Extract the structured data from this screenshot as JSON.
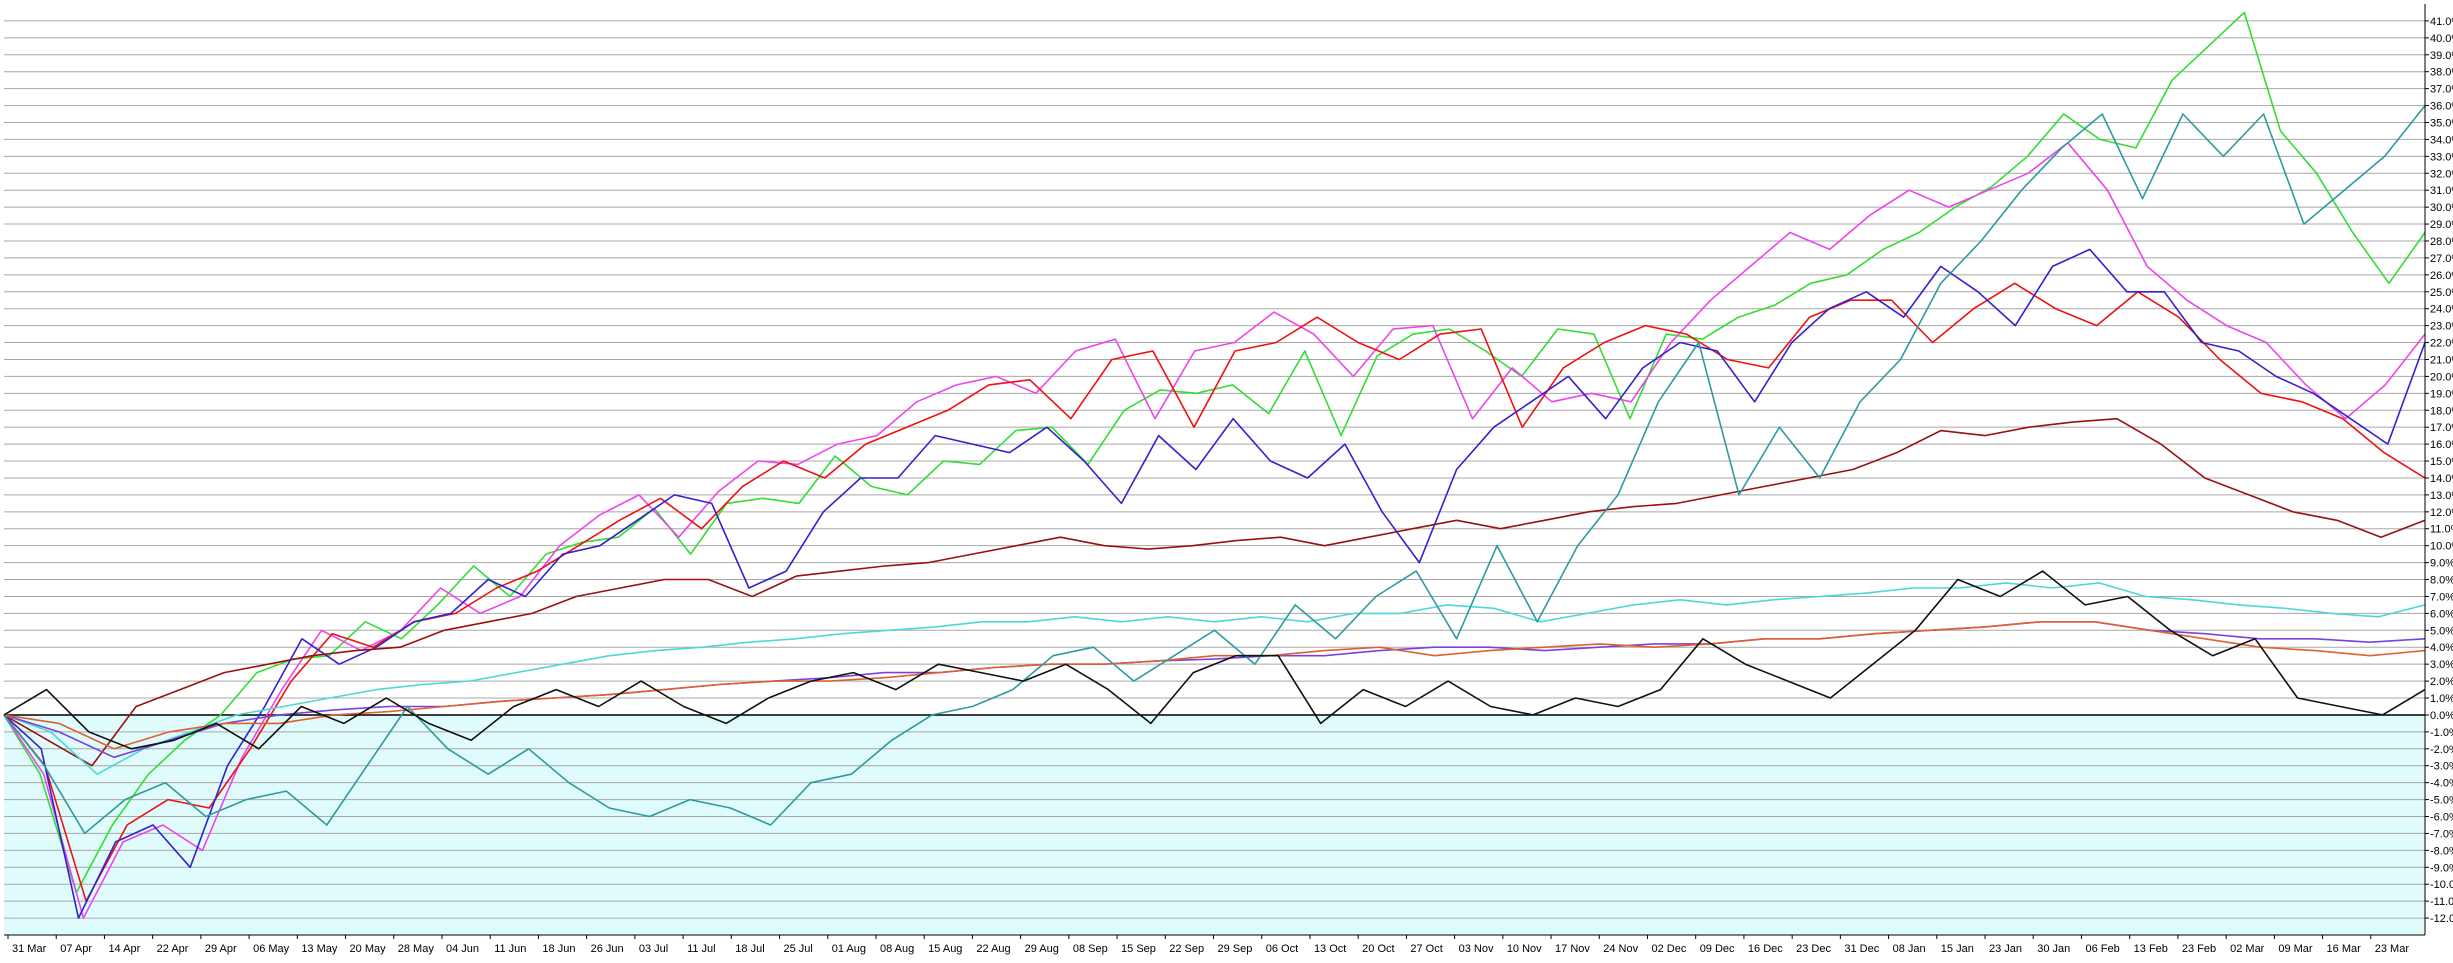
{
  "chart_data": {
    "type": "line",
    "title": "",
    "xlabel": "",
    "ylabel": "",
    "ylim": [
      -13,
      42
    ],
    "y_tick_values": [
      41,
      40,
      39,
      38,
      37,
      36,
      35,
      34,
      33,
      32,
      31,
      30,
      29,
      28,
      27,
      26,
      25,
      24,
      23,
      22,
      21,
      20,
      19,
      18,
      17,
      16,
      15,
      14,
      13,
      12,
      11,
      10,
      9,
      8,
      7,
      6,
      5,
      4,
      3,
      2,
      1,
      0,
      -1,
      -2,
      -3,
      -4,
      -5,
      -6,
      -7,
      -8,
      -9,
      -10,
      -11,
      -12
    ],
    "y_tick_labels": [
      "41.0%",
      "40.0%",
      "39.0%",
      "38.0%",
      "37.0%",
      "36.0%",
      "35.0%",
      "34.0%",
      "33.0%",
      "32.0%",
      "31.0%",
      "30.0%",
      "29.0%",
      "28.0%",
      "27.0%",
      "26.0%",
      "25.0%",
      "24.0%",
      "23.0%",
      "22.0%",
      "21.0%",
      "20.0%",
      "19.0%",
      "18.0%",
      "17.0%",
      "16.0%",
      "15.0%",
      "14.0%",
      "13.0%",
      "12.0%",
      "11.0%",
      "10.0%",
      "9.0%",
      "8.0%",
      "7.0%",
      "6.0%",
      "5.0%",
      "4.0%",
      "3.0%",
      "2.0%",
      "1.0%",
      "0.0%",
      "-1.0%",
      "-2.0%",
      "-3.0%",
      "-4.0%",
      "-5.0%",
      "-6.0%",
      "-7.0%",
      "-8.0%",
      "-9.0%",
      "-10.0%",
      "-11.0%",
      "-12.0%"
    ],
    "x_tick_labels": [
      "31 Mar",
      "07 Apr",
      "14 Apr",
      "22 Apr",
      "29 Apr",
      "06 May",
      "13 May",
      "20 May",
      "28 May",
      "04 Jun",
      "11 Jun",
      "18 Jun",
      "26 Jun",
      "03 Jul",
      "11 Jul",
      "18 Jul",
      "25 Jul",
      "01 Aug",
      "08 Aug",
      "15 Aug",
      "22 Aug",
      "29 Aug",
      "08 Sep",
      "15 Sep",
      "22 Sep",
      "29 Sep",
      "06 Oct",
      "13 Oct",
      "20 Oct",
      "27 Oct",
      "03 Nov",
      "10 Nov",
      "17 Nov",
      "24 Nov",
      "02 Dec",
      "09 Dec",
      "16 Dec",
      "23 Dec",
      "31 Dec",
      "08 Jan",
      "15 Jan",
      "23 Jan",
      "30 Jan",
      "06 Feb",
      "13 Feb",
      "23 Feb",
      "02 Mar",
      "09 Mar",
      "16 Mar",
      "23 Mar"
    ],
    "grid": true,
    "legend": "none",
    "colors": {
      "background_positive": "#ffffff",
      "background_negative": "#e0fbfb",
      "grid": "#a8a8a8",
      "zero_line": "#000000"
    },
    "series": [
      {
        "color": "#33dd33",
        "values": [
          0.0,
          -3.5,
          -10.5,
          -6.5,
          -3.5,
          -1.5,
          0.0,
          2.5,
          3.3,
          3.5,
          5.5,
          4.5,
          6.5,
          8.8,
          7.0,
          9.5,
          10.2,
          10.5,
          12.2,
          9.5,
          12.5,
          12.8,
          12.5,
          15.3,
          13.5,
          13.0,
          15.0,
          14.8,
          16.8,
          17.0,
          14.8,
          18.0,
          19.2,
          19.0,
          19.5,
          17.8,
          21.5,
          16.5,
          21.2,
          22.5,
          22.8,
          21.5,
          20.0,
          22.8,
          22.5,
          17.5,
          22.5,
          22.2,
          23.5,
          24.2,
          25.5,
          26.0,
          27.5,
          28.5,
          30.0,
          31.2,
          33.0,
          35.5,
          34.0,
          33.5,
          37.5,
          39.5,
          41.5,
          34.5,
          32.0,
          28.5,
          25.5,
          28.5
        ]
      },
      {
        "color": "#ee44ee",
        "values": [
          0.0,
          -3.5,
          -12.0,
          -7.5,
          -6.5,
          -8.0,
          -2.5,
          1.5,
          5.0,
          3.8,
          5.0,
          7.5,
          6.0,
          7.0,
          10.0,
          11.8,
          13.0,
          10.5,
          13.2,
          15.0,
          14.8,
          16.0,
          16.5,
          18.5,
          19.5,
          20.0,
          19.0,
          21.5,
          22.2,
          17.5,
          21.5,
          22.0,
          23.8,
          22.5,
          20.0,
          22.8,
          23.0,
          17.5,
          20.5,
          18.5,
          19.0,
          18.5,
          22.0,
          24.5,
          26.5,
          28.5,
          27.5,
          29.5,
          31.0,
          30.0,
          31.0,
          32.0,
          33.8,
          31.0,
          26.5,
          24.5,
          23.0,
          22.0,
          19.5,
          17.5,
          19.5,
          22.5
        ]
      },
      {
        "color": "#ee1111",
        "values": [
          0.0,
          -3.0,
          -11.0,
          -6.5,
          -5.0,
          -5.5,
          -2.0,
          2.0,
          4.8,
          4.0,
          5.5,
          6.0,
          7.5,
          8.5,
          10.0,
          11.5,
          12.8,
          11.0,
          13.5,
          15.0,
          14.0,
          16.0,
          17.0,
          18.0,
          19.5,
          19.8,
          17.5,
          21.0,
          21.5,
          17.0,
          21.5,
          22.0,
          23.5,
          22.0,
          21.0,
          22.5,
          22.8,
          17.0,
          20.5,
          22.0,
          23.0,
          22.5,
          21.0,
          20.5,
          23.5,
          24.5,
          24.5,
          22.0,
          24.0,
          25.5,
          24.0,
          23.0,
          25.0,
          23.5,
          21.0,
          19.0,
          18.5,
          17.5,
          15.5,
          14.0
        ]
      },
      {
        "color": "#3322cc",
        "values": [
          0.0,
          -2.0,
          -12.0,
          -7.5,
          -6.5,
          -9.0,
          -3.0,
          0.5,
          4.5,
          3.0,
          4.0,
          5.5,
          6.0,
          8.0,
          7.0,
          9.5,
          10.0,
          11.5,
          13.0,
          12.5,
          7.5,
          8.5,
          12.0,
          14.0,
          14.0,
          16.5,
          16.0,
          15.5,
          17.0,
          15.0,
          12.5,
          16.5,
          14.5,
          17.5,
          15.0,
          14.0,
          16.0,
          12.0,
          9.0,
          14.5,
          17.0,
          18.5,
          20.0,
          17.5,
          20.5,
          22.0,
          21.5,
          18.5,
          22.0,
          24.0,
          25.0,
          23.5,
          26.5,
          25.0,
          23.0,
          26.5,
          27.5,
          25.0,
          25.0,
          22.0,
          21.5,
          20.0,
          19.0,
          17.5,
          16.0,
          22.0
        ]
      },
      {
        "color": "#991111",
        "values": [
          0.0,
          -1.5,
          -3.0,
          0.5,
          1.5,
          2.5,
          3.0,
          3.5,
          3.8,
          4.0,
          5.0,
          5.5,
          6.0,
          7.0,
          7.5,
          8.0,
          8.0,
          7.0,
          8.2,
          8.5,
          8.8,
          9.0,
          9.5,
          10.0,
          10.5,
          10.0,
          9.8,
          10.0,
          10.3,
          10.5,
          10.0,
          10.5,
          11.0,
          11.5,
          11.0,
          11.5,
          12.0,
          12.3,
          12.5,
          13.0,
          13.5,
          14.0,
          14.5,
          15.5,
          16.8,
          16.5,
          17.0,
          17.3,
          17.5,
          16.0,
          14.0,
          13.0,
          12.0,
          11.5,
          10.5,
          11.5
        ]
      },
      {
        "color": "#4ad8d8",
        "values": [
          0.0,
          -1.0,
          -3.5,
          -2.0,
          -1.0,
          0.0,
          0.5,
          1.0,
          1.5,
          1.8,
          2.0,
          2.5,
          3.0,
          3.5,
          3.8,
          4.0,
          4.3,
          4.5,
          4.8,
          5.0,
          5.2,
          5.5,
          5.5,
          5.8,
          5.5,
          5.8,
          5.5,
          5.8,
          5.5,
          6.0,
          6.0,
          6.5,
          6.3,
          5.5,
          6.0,
          6.5,
          6.8,
          6.5,
          6.8,
          7.0,
          7.2,
          7.5,
          7.5,
          7.8,
          7.5,
          7.8,
          7.0,
          6.8,
          6.5,
          6.3,
          6.0,
          5.8,
          6.5
        ]
      },
      {
        "color": "#7744dd",
        "values": [
          0.0,
          -1.0,
          -2.5,
          -1.5,
          -0.5,
          0.0,
          0.3,
          0.5,
          0.5,
          0.8,
          1.0,
          1.2,
          1.5,
          1.8,
          2.0,
          2.2,
          2.5,
          2.5,
          2.8,
          3.0,
          3.0,
          3.2,
          3.3,
          3.5,
          3.5,
          3.8,
          4.0,
          4.0,
          3.8,
          4.0,
          4.2,
          4.2,
          4.5,
          4.5,
          4.8,
          5.0,
          5.2,
          5.5,
          5.5,
          5.0,
          4.8,
          4.5,
          4.5,
          4.3,
          4.5
        ]
      },
      {
        "color": "#e06030",
        "values": [
          0.0,
          -0.5,
          -2.0,
          -1.0,
          -0.5,
          -0.5,
          0.0,
          0.2,
          0.5,
          0.8,
          1.0,
          1.2,
          1.5,
          1.8,
          2.0,
          2.0,
          2.2,
          2.5,
          2.8,
          3.0,
          3.0,
          3.2,
          3.5,
          3.5,
          3.8,
          4.0,
          3.5,
          3.8,
          4.0,
          4.2,
          4.0,
          4.2,
          4.5,
          4.5,
          4.8,
          5.0,
          5.2,
          5.5,
          5.5,
          5.0,
          4.5,
          4.0,
          3.8,
          3.5,
          3.8
        ]
      },
      {
        "color": "#2e9aa0",
        "values": [
          0.0,
          -3.0,
          -7.0,
          -5.0,
          -4.0,
          -6.0,
          -5.0,
          -4.5,
          -6.5,
          -3.0,
          0.5,
          -2.0,
          -3.5,
          -2.0,
          -4.0,
          -5.5,
          -6.0,
          -5.0,
          -5.5,
          -6.5,
          -4.0,
          -3.5,
          -1.5,
          0.0,
          0.5,
          1.5,
          3.5,
          4.0,
          2.0,
          3.5,
          5.0,
          3.0,
          6.5,
          4.5,
          7.0,
          8.5,
          4.5,
          10.0,
          5.5,
          10.0,
          13.0,
          18.5,
          22.0,
          13.0,
          17.0,
          14.0,
          18.5,
          21.0,
          25.5,
          28.0,
          31.0,
          33.5,
          35.5,
          30.5,
          35.5,
          33.0,
          35.5,
          29.0,
          31.0,
          33.0,
          36.0
        ]
      },
      {
        "color": "#111111",
        "values": [
          0.0,
          1.5,
          -1.0,
          -2.0,
          -1.5,
          -0.5,
          -2.0,
          0.5,
          -0.5,
          1.0,
          -0.5,
          -1.5,
          0.5,
          1.5,
          0.5,
          2.0,
          0.5,
          -0.5,
          1.0,
          2.0,
          2.5,
          1.5,
          3.0,
          2.5,
          2.0,
          3.0,
          1.5,
          -0.5,
          2.5,
          3.5,
          3.5,
          -0.5,
          1.5,
          0.5,
          2.0,
          0.5,
          0.0,
          1.0,
          0.5,
          1.5,
          4.5,
          3.0,
          2.0,
          1.0,
          3.0,
          5.0,
          8.0,
          7.0,
          8.5,
          6.5,
          7.0,
          5.0,
          3.5,
          4.5,
          1.0,
          0.5,
          0.0,
          1.5
        ]
      }
    ]
  }
}
